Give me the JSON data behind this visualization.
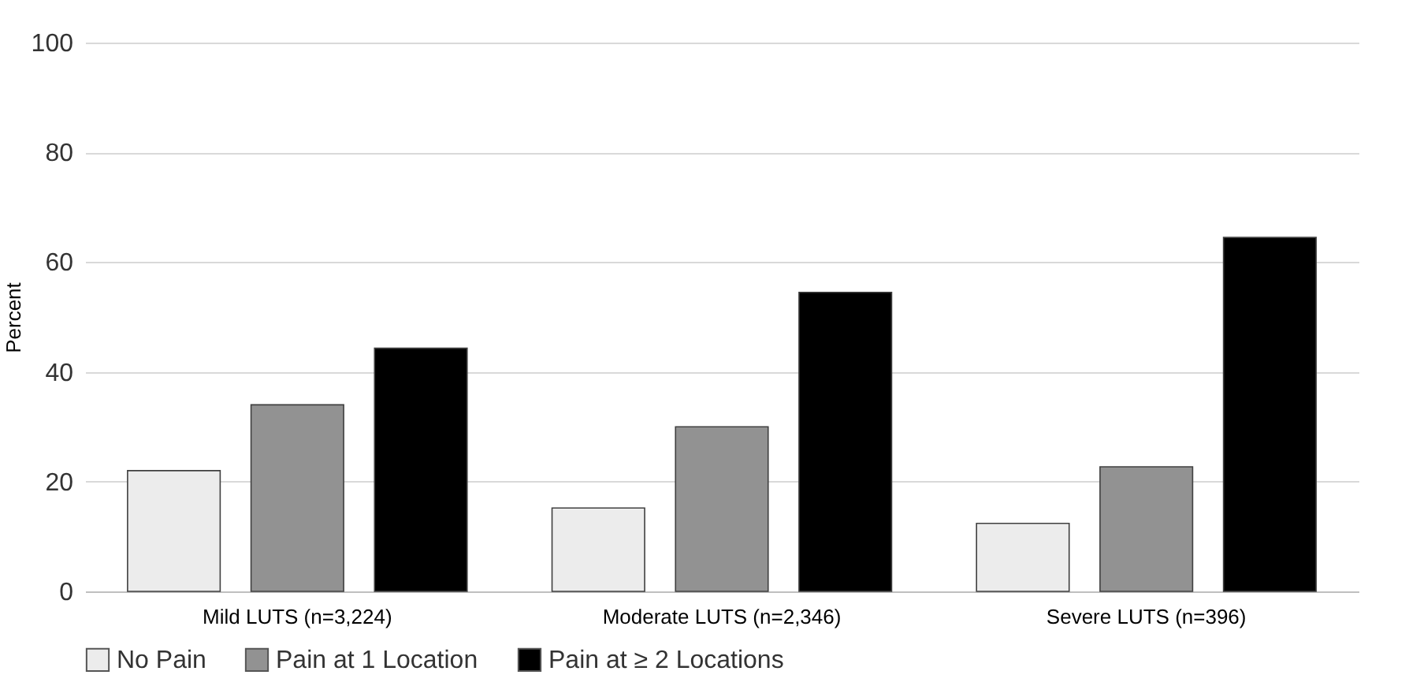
{
  "chart_data": {
    "type": "bar",
    "ylabel": "Percent",
    "categories": [
      "Mild LUTS (n=3,224)",
      "Moderate LUTS (n=2,346)",
      "Severe LUTS (n=396)"
    ],
    "series": [
      {
        "name": "No Pain",
        "color": "#ececec",
        "values": [
          22,
          15.2,
          12.4
        ]
      },
      {
        "name": "Pain at 1 Location",
        "color": "#929292",
        "values": [
          34,
          30,
          22.7
        ]
      },
      {
        "name": "Pain at ≥ 2 Locations",
        "color": "#000000",
        "values": [
          44.3,
          54.5,
          64.5
        ]
      }
    ],
    "ylim": [
      0,
      100
    ],
    "yticks": [
      0,
      20,
      40,
      60,
      80,
      100
    ],
    "grid": "y",
    "legend": "bottom"
  }
}
